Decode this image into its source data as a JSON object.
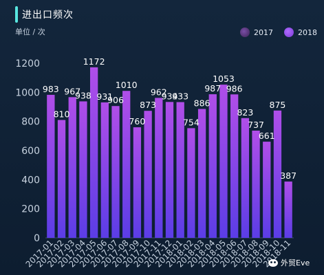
{
  "header": {
    "title": "进出口频次",
    "unit": "单位 / 次"
  },
  "legend": [
    {
      "name": "2017",
      "color": "#5a3a7e"
    },
    {
      "name": "2018",
      "color": "#9b5cf0"
    }
  ],
  "watermark": {
    "text": "外贸Eve"
  },
  "colors": {
    "bar_top": "#b04ee8",
    "bar_bottom": "#5b3de6",
    "axis": "#c8d3e0",
    "label": "#ffffff"
  },
  "chart_data": {
    "type": "bar",
    "title": "进出口频次",
    "ylabel": "单位 / 次",
    "ylim": [
      0,
      1200
    ],
    "yticks": [
      0,
      200,
      400,
      600,
      800,
      1000,
      1200
    ],
    "categories": [
      "2017-01",
      "2017-02",
      "2017-03",
      "2017-04",
      "2017-05",
      "2017-06",
      "2017-07",
      "2017-08",
      "2017-09",
      "2017-10",
      "2017-11",
      "2017-12",
      "2018-01",
      "2018-02",
      "2018-03",
      "2018-04",
      "2018-05",
      "2018-06",
      "2018-07",
      "2018-08",
      "2018-09",
      "2018-10",
      "2018-11"
    ],
    "values": [
      983,
      810,
      967,
      938,
      1172,
      931,
      906,
      1010,
      760,
      873,
      962,
      934,
      933,
      754,
      886,
      987,
      1053,
      986,
      823,
      737,
      661,
      875,
      387
    ],
    "legend_position": "top-right",
    "grid": false
  }
}
